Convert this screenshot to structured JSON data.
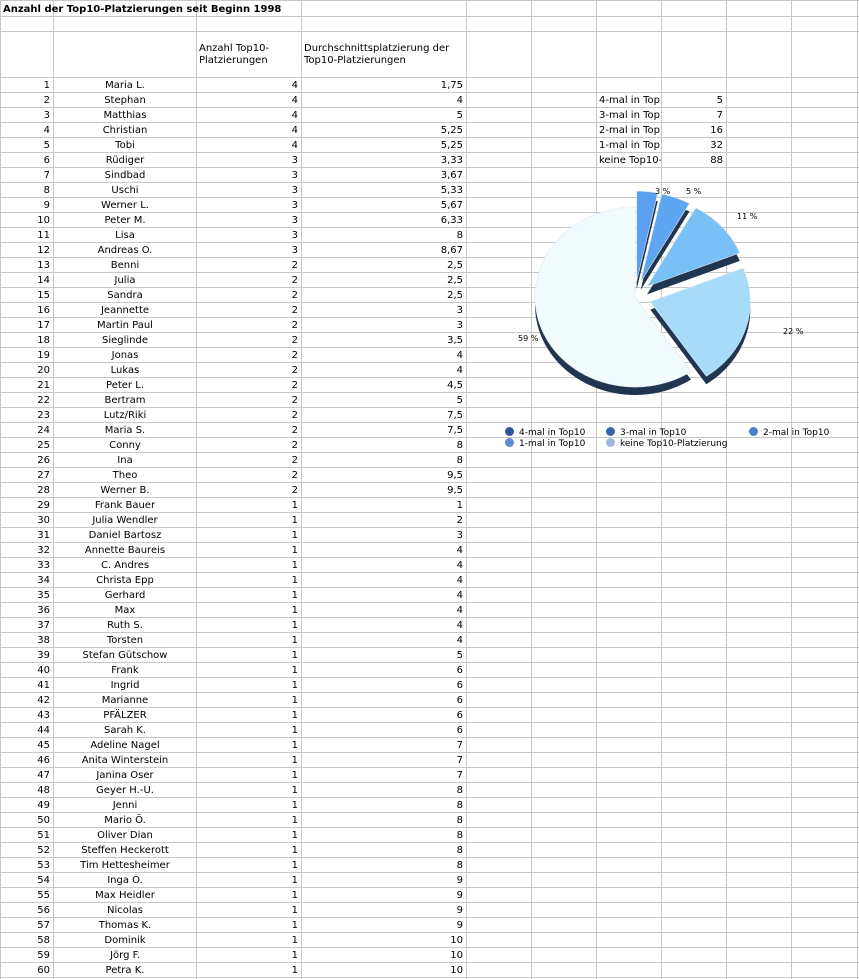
{
  "sheet": {
    "title": "Anzahl der Top10-Platzierungen seit Beginn 1998",
    "header_count": "Anzahl Top10-Platzierungen",
    "header_avg": "Durchschnittsplatzierung der Top10-Platzierungen"
  },
  "rows": [
    {
      "rank": "1",
      "name": "Maria L.",
      "count": "4",
      "avg": "1,75"
    },
    {
      "rank": "2",
      "name": "Stephan",
      "count": "4",
      "avg": "4"
    },
    {
      "rank": "3",
      "name": "Matthias",
      "count": "4",
      "avg": "5"
    },
    {
      "rank": "4",
      "name": "Christian",
      "count": "4",
      "avg": "5,25"
    },
    {
      "rank": "5",
      "name": "Tobi",
      "count": "4",
      "avg": "5,25"
    },
    {
      "rank": "6",
      "name": "Rüdiger",
      "count": "3",
      "avg": "3,33"
    },
    {
      "rank": "7",
      "name": "Sindbad",
      "count": "3",
      "avg": "3,67"
    },
    {
      "rank": "8",
      "name": "Uschi",
      "count": "3",
      "avg": "5,33"
    },
    {
      "rank": "9",
      "name": "Werner L.",
      "count": "3",
      "avg": "5,67"
    },
    {
      "rank": "10",
      "name": "Peter M.",
      "count": "3",
      "avg": "6,33"
    },
    {
      "rank": "11",
      "name": "Lisa",
      "count": "3",
      "avg": "8"
    },
    {
      "rank": "12",
      "name": "Andreas O.",
      "count": "3",
      "avg": "8,67"
    },
    {
      "rank": "13",
      "name": "Benni",
      "count": "2",
      "avg": "2,5"
    },
    {
      "rank": "14",
      "name": "Julia",
      "count": "2",
      "avg": "2,5"
    },
    {
      "rank": "15",
      "name": "Sandra",
      "count": "2",
      "avg": "2,5"
    },
    {
      "rank": "16",
      "name": "Jeannette",
      "count": "2",
      "avg": "3"
    },
    {
      "rank": "17",
      "name": "Martin Paul",
      "count": "2",
      "avg": "3"
    },
    {
      "rank": "18",
      "name": "Sieglinde",
      "count": "2",
      "avg": "3,5"
    },
    {
      "rank": "19",
      "name": "Jonas",
      "count": "2",
      "avg": "4"
    },
    {
      "rank": "20",
      "name": "Lukas",
      "count": "2",
      "avg": "4"
    },
    {
      "rank": "21",
      "name": "Peter L.",
      "count": "2",
      "avg": "4,5"
    },
    {
      "rank": "22",
      "name": "Bertram",
      "count": "2",
      "avg": "5"
    },
    {
      "rank": "23",
      "name": "Lutz/Riki",
      "count": "2",
      "avg": "7,5"
    },
    {
      "rank": "24",
      "name": "Maria S.",
      "count": "2",
      "avg": "7,5"
    },
    {
      "rank": "25",
      "name": "Conny",
      "count": "2",
      "avg": "8"
    },
    {
      "rank": "26",
      "name": "Ina",
      "count": "2",
      "avg": "8"
    },
    {
      "rank": "27",
      "name": "Theo",
      "count": "2",
      "avg": "9,5"
    },
    {
      "rank": "28",
      "name": "Werner B.",
      "count": "2",
      "avg": "9,5"
    },
    {
      "rank": "29",
      "name": "Frank Bauer",
      "count": "1",
      "avg": "1"
    },
    {
      "rank": "30",
      "name": "Julia Wendler",
      "count": "1",
      "avg": "2"
    },
    {
      "rank": "31",
      "name": "Daniel Bartosz",
      "count": "1",
      "avg": "3"
    },
    {
      "rank": "32",
      "name": "Annette Baureis",
      "count": "1",
      "avg": "4"
    },
    {
      "rank": "33",
      "name": "C. Andres",
      "count": "1",
      "avg": "4"
    },
    {
      "rank": "34",
      "name": "Christa Epp",
      "count": "1",
      "avg": "4"
    },
    {
      "rank": "35",
      "name": "Gerhard",
      "count": "1",
      "avg": "4"
    },
    {
      "rank": "36",
      "name": "Max",
      "count": "1",
      "avg": "4"
    },
    {
      "rank": "37",
      "name": "Ruth S.",
      "count": "1",
      "avg": "4"
    },
    {
      "rank": "38",
      "name": "Torsten",
      "count": "1",
      "avg": "4"
    },
    {
      "rank": "39",
      "name": "Stefan Gütschow",
      "count": "1",
      "avg": "5"
    },
    {
      "rank": "40",
      "name": "Frank",
      "count": "1",
      "avg": "6"
    },
    {
      "rank": "41",
      "name": "Ingrid",
      "count": "1",
      "avg": "6"
    },
    {
      "rank": "42",
      "name": "Marianne",
      "count": "1",
      "avg": "6"
    },
    {
      "rank": "43",
      "name": "PFÄLZER",
      "count": "1",
      "avg": "6"
    },
    {
      "rank": "44",
      "name": "Sarah K.",
      "count": "1",
      "avg": "6"
    },
    {
      "rank": "45",
      "name": "Adeline Nagel",
      "count": "1",
      "avg": "7"
    },
    {
      "rank": "46",
      "name": "Anita Winterstein",
      "count": "1",
      "avg": "7"
    },
    {
      "rank": "47",
      "name": "Janina Oser",
      "count": "1",
      "avg": "7"
    },
    {
      "rank": "48",
      "name": "Geyer H.-U.",
      "count": "1",
      "avg": "8"
    },
    {
      "rank": "49",
      "name": "Jenni",
      "count": "1",
      "avg": "8"
    },
    {
      "rank": "50",
      "name": "Mario Ö.",
      "count": "1",
      "avg": "8"
    },
    {
      "rank": "51",
      "name": "Oliver Dian",
      "count": "1",
      "avg": "8"
    },
    {
      "rank": "52",
      "name": "Steffen Heckerott",
      "count": "1",
      "avg": "8"
    },
    {
      "rank": "53",
      "name": "Tim Hettesheimer",
      "count": "1",
      "avg": "8"
    },
    {
      "rank": "54",
      "name": "Inga O.",
      "count": "1",
      "avg": "9"
    },
    {
      "rank": "55",
      "name": "Max Heidler",
      "count": "1",
      "avg": "9"
    },
    {
      "rank": "56",
      "name": "Nicolas",
      "count": "1",
      "avg": "9"
    },
    {
      "rank": "57",
      "name": "Thomas K.",
      "count": "1",
      "avg": "9"
    },
    {
      "rank": "58",
      "name": "Dominik",
      "count": "1",
      "avg": "10"
    },
    {
      "rank": "59",
      "name": "Jörg F.",
      "count": "1",
      "avg": "10"
    },
    {
      "rank": "60",
      "name": "Petra K.",
      "count": "1",
      "avg": "10"
    }
  ],
  "summary": [
    {
      "label": "4-mal in Top",
      "value": "5"
    },
    {
      "label": "3-mal in Top",
      "value": "7"
    },
    {
      "label": "2-mal in Top",
      "value": "16"
    },
    {
      "label": "1-mal in Top",
      "value": "32"
    },
    {
      "label": "keine Top10-",
      "value": "88"
    }
  ],
  "chart_data": {
    "type": "pie",
    "categories": [
      "4-mal in Top10",
      "3-mal in Top10",
      "2-mal in Top10",
      "1-mal in Top10",
      "keine Top10-Platzierung"
    ],
    "values": [
      5,
      7,
      16,
      32,
      88
    ],
    "percent_labels": [
      "3 %",
      "5 %",
      "11 %",
      "22 %",
      "59 %"
    ],
    "colors": [
      "#2f5597",
      "#3a63a8",
      "#4a80c8",
      "#5f8fd3",
      "#9fb6dc"
    ],
    "slice_colors": [
      "#5a9ff0",
      "#5fa6f2",
      "#78c0f6",
      "#a7dcf8",
      "#f2fbfe"
    ],
    "legend_position": "bottom"
  }
}
